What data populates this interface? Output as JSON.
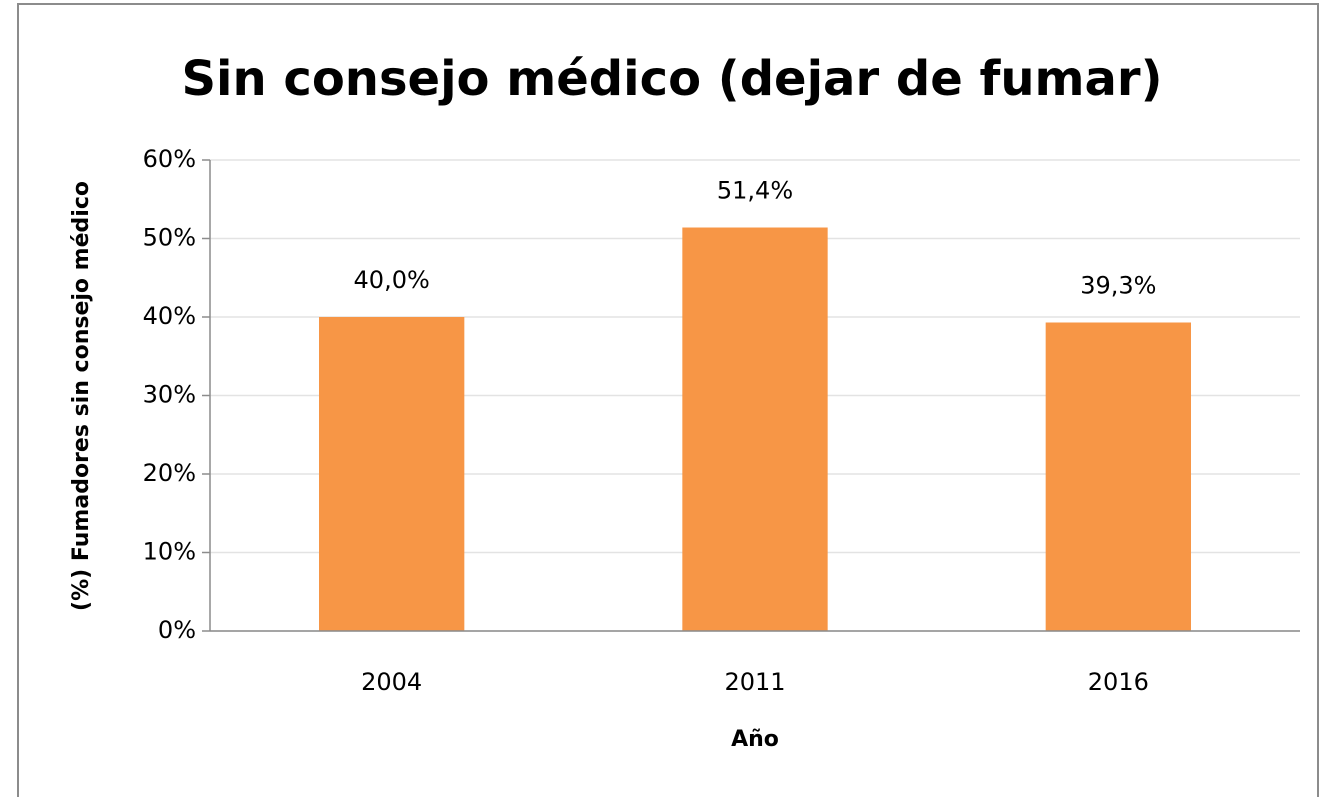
{
  "chart_data": {
    "type": "bar",
    "title": "Sin consejo médico (dejar de fumar)",
    "x_label": "Año",
    "y_label": "(%) Fumadores sin consejo médico",
    "categories": [
      "2004",
      "2011",
      "2016"
    ],
    "values": [
      40,
      51.4,
      39.3
    ],
    "value_labels": [
      "40,0%",
      "51,4%",
      "39,3%"
    ],
    "color": "#f79646",
    "ylim": [
      0,
      60
    ],
    "yticks": [
      {
        "value": 0,
        "label": "0%"
      },
      {
        "value": 10,
        "label": "10%"
      },
      {
        "value": 20,
        "label": "20%"
      },
      {
        "value": 30,
        "label": "30%"
      },
      {
        "value": 40,
        "label": "40%"
      },
      {
        "value": 50,
        "label": "50%"
      },
      {
        "value": 60,
        "label": "60%"
      }
    ],
    "grid": true
  }
}
